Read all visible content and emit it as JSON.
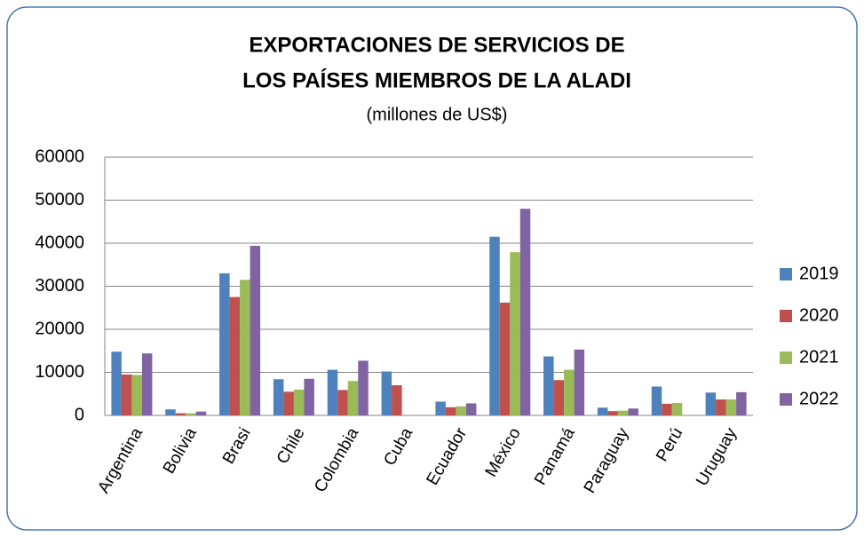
{
  "chart_data": {
    "type": "bar",
    "title": [
      "EXPORTACIONES DE SERVICIOS DE",
      "LOS PAÍSES MIEMBROS DE LA ALADI"
    ],
    "subtitle": "(millones de US$)",
    "categories": [
      "Argentina",
      "Bolivia",
      "Brasi",
      "Chile",
      "Colombia",
      "Cuba",
      "Ecuador",
      "México",
      "Panamá",
      "Paraguay",
      "Perú",
      "Uruguay"
    ],
    "series": [
      {
        "name": "2019",
        "color": "#4f81bd",
        "values": [
          14800,
          1400,
          33000,
          8400,
          10600,
          10200,
          3200,
          41500,
          13700,
          1800,
          6700,
          5300
        ]
      },
      {
        "name": "2020",
        "color": "#c0504d",
        "values": [
          9500,
          500,
          27500,
          5500,
          5900,
          7000,
          1900,
          26200,
          8200,
          1000,
          2700,
          3700
        ]
      },
      {
        "name": "2021",
        "color": "#9bbb59",
        "values": [
          9400,
          500,
          31500,
          6000,
          8000,
          null,
          2100,
          37900,
          10600,
          1100,
          2900,
          3700
        ]
      },
      {
        "name": "2022",
        "color": "#8064a2",
        "values": [
          14400,
          900,
          39400,
          8500,
          12700,
          null,
          2800,
          48000,
          15300,
          1600,
          null,
          5400
        ]
      }
    ],
    "ylim": [
      0,
      60000
    ],
    "yticks": [
      0,
      10000,
      20000,
      30000,
      40000,
      50000,
      60000
    ],
    "grid": true,
    "legend": "right"
  }
}
